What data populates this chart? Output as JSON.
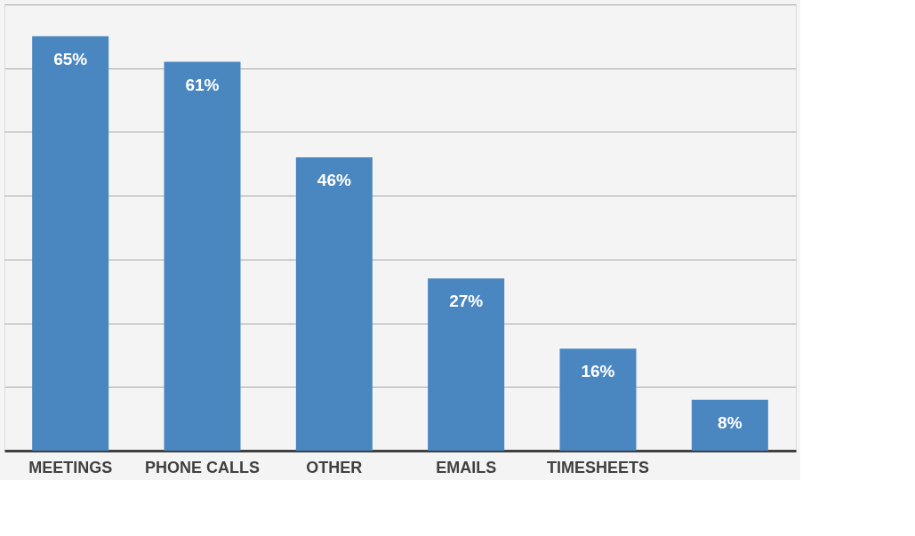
{
  "chart_data": {
    "type": "bar",
    "categories": [
      "MEETINGS",
      "PHONE CALLS",
      "OTHER",
      "EMAILS",
      "TIMESHEETS",
      null
    ],
    "values": [
      65,
      61,
      46,
      27,
      16,
      8
    ],
    "value_labels": [
      "65%",
      "61%",
      "46%",
      "27%",
      "16%",
      "8%"
    ],
    "color": "#4a86c0",
    "ylim": [
      0,
      70
    ],
    "yticks": [
      {
        "value": 0,
        "label": null
      },
      {
        "value": 10,
        "label": null
      },
      {
        "value": 20,
        "label": null
      },
      {
        "value": 30,
        "label": null
      },
      {
        "value": 40,
        "label": null
      },
      {
        "value": 50,
        "label": null
      },
      {
        "value": 60,
        "label": null
      },
      {
        "value": 70,
        "label": null
      }
    ],
    "tick_labels": "x",
    "grid": "y"
  }
}
